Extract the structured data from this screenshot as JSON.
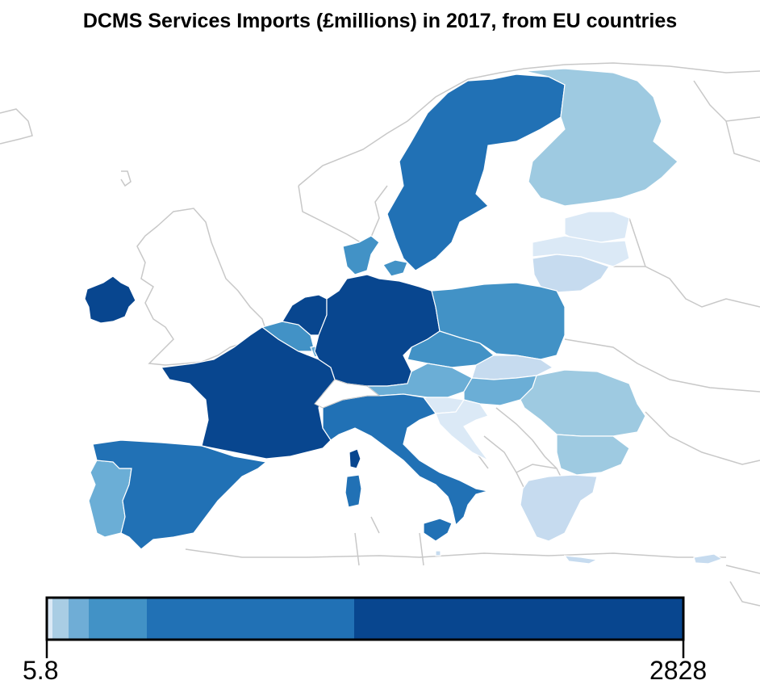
{
  "title": "DCMS Services Imports (£millions) in 2017, from EU countries",
  "legend": {
    "min_label": "5.8",
    "max_label": "2828",
    "min_value": 5.8,
    "max_value": 2828,
    "bins": [
      {
        "from": 5.8,
        "to": 50,
        "color": "#dbe9f6"
      },
      {
        "from": 50,
        "to": 150,
        "color": "#a9cde4"
      },
      {
        "from": 150,
        "to": 300,
        "color": "#6fadd6"
      },
      {
        "from": 300,
        "to": 700,
        "color": "#4292c6"
      },
      {
        "from": 700,
        "to": 1600,
        "color": "#2171b5"
      },
      {
        "from": 1600,
        "to": 2828,
        "color": "#08468f"
      }
    ]
  },
  "colors": {
    "very_light": "#dbe9f6",
    "light": "#c6dbef",
    "light_mid": "#9ecae1",
    "mid": "#6baed6",
    "mid_dark": "#4292c6",
    "dark": "#2171b5",
    "darkest": "#08468f",
    "non_eu_border": "#c8c8c8"
  }
}
